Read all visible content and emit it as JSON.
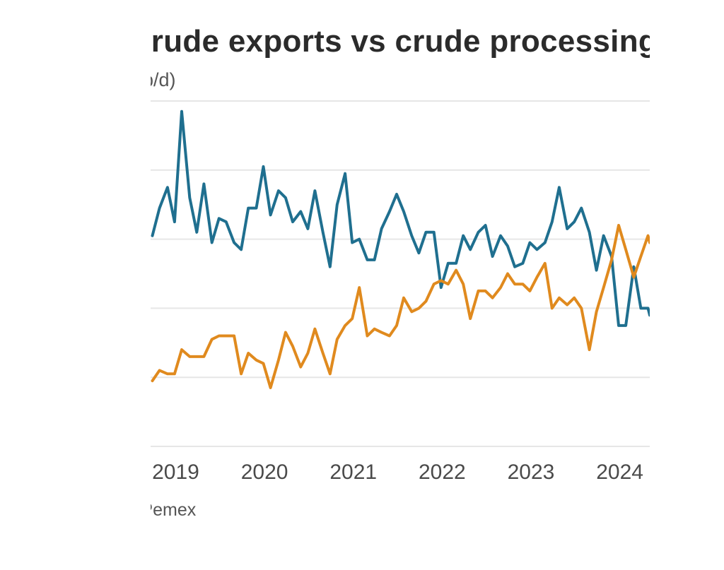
{
  "chart_data": {
    "type": "line",
    "title": "crude exports vs crude processing",
    "ylabel": "(b/d)",
    "xlabel": "",
    "source": "Platts, Pemex",
    "x_tick_labels": [
      "2019",
      "2020",
      "2021",
      "2022",
      "2023",
      "2024"
    ],
    "xlim": [
      2018.98,
      2024.6
    ],
    "ylim": [
      0,
      5
    ],
    "gridlines": [
      0,
      1,
      2,
      3,
      4,
      5
    ],
    "y_tick_labels_visible": false,
    "legend": "none",
    "series": [
      {
        "name": "Crude exports",
        "color": "#1f6f8f",
        "points": [
          [
            2019.0,
            3.05
          ],
          [
            2019.08,
            3.45
          ],
          [
            2019.17,
            3.75
          ],
          [
            2019.25,
            3.25
          ],
          [
            2019.33,
            4.85
          ],
          [
            2019.42,
            3.6
          ],
          [
            2019.5,
            3.1
          ],
          [
            2019.58,
            3.8
          ],
          [
            2019.67,
            2.95
          ],
          [
            2019.75,
            3.3
          ],
          [
            2019.83,
            3.25
          ],
          [
            2019.92,
            2.95
          ],
          [
            2020.0,
            2.85
          ],
          [
            2020.08,
            3.45
          ],
          [
            2020.17,
            3.45
          ],
          [
            2020.25,
            4.05
          ],
          [
            2020.33,
            3.35
          ],
          [
            2020.42,
            3.7
          ],
          [
            2020.5,
            3.6
          ],
          [
            2020.58,
            3.25
          ],
          [
            2020.67,
            3.4
          ],
          [
            2020.75,
            3.15
          ],
          [
            2020.83,
            3.7
          ],
          [
            2020.92,
            3.1
          ],
          [
            2021.0,
            2.6
          ],
          [
            2021.08,
            3.5
          ],
          [
            2021.17,
            3.95
          ],
          [
            2021.25,
            2.95
          ],
          [
            2021.33,
            3.0
          ],
          [
            2021.42,
            2.7
          ],
          [
            2021.5,
            2.7
          ],
          [
            2021.58,
            3.15
          ],
          [
            2021.67,
            3.4
          ],
          [
            2021.75,
            3.65
          ],
          [
            2021.83,
            3.4
          ],
          [
            2021.92,
            3.05
          ],
          [
            2022.0,
            2.8
          ],
          [
            2022.08,
            3.1
          ],
          [
            2022.17,
            3.1
          ],
          [
            2022.25,
            2.3
          ],
          [
            2022.33,
            2.65
          ],
          [
            2022.42,
            2.65
          ],
          [
            2022.5,
            3.05
          ],
          [
            2022.58,
            2.85
          ],
          [
            2022.67,
            3.1
          ],
          [
            2022.75,
            3.2
          ],
          [
            2022.83,
            2.75
          ],
          [
            2022.92,
            3.05
          ],
          [
            2023.0,
            2.9
          ],
          [
            2023.08,
            2.6
          ],
          [
            2023.17,
            2.65
          ],
          [
            2023.25,
            2.95
          ],
          [
            2023.33,
            2.85
          ],
          [
            2023.42,
            2.95
          ],
          [
            2023.5,
            3.25
          ],
          [
            2023.58,
            3.75
          ],
          [
            2023.67,
            3.15
          ],
          [
            2023.75,
            3.25
          ],
          [
            2023.83,
            3.45
          ],
          [
            2023.92,
            3.1
          ],
          [
            2024.0,
            2.55
          ],
          [
            2024.08,
            3.05
          ],
          [
            2024.17,
            2.75
          ],
          [
            2024.25,
            1.75
          ],
          [
            2024.33,
            1.75
          ],
          [
            2024.42,
            2.6
          ],
          [
            2024.5,
            2.0
          ],
          [
            2024.58,
            2.0
          ],
          [
            2024.6,
            1.9
          ]
        ]
      },
      {
        "name": "Crude processing",
        "color": "#e08a1e",
        "points": [
          [
            2019.0,
            0.95
          ],
          [
            2019.08,
            1.1
          ],
          [
            2019.17,
            1.05
          ],
          [
            2019.25,
            1.05
          ],
          [
            2019.33,
            1.4
          ],
          [
            2019.42,
            1.3
          ],
          [
            2019.5,
            1.3
          ],
          [
            2019.58,
            1.3
          ],
          [
            2019.67,
            1.55
          ],
          [
            2019.75,
            1.6
          ],
          [
            2019.83,
            1.6
          ],
          [
            2019.92,
            1.6
          ],
          [
            2020.0,
            1.05
          ],
          [
            2020.08,
            1.35
          ],
          [
            2020.17,
            1.25
          ],
          [
            2020.25,
            1.2
          ],
          [
            2020.33,
            0.85
          ],
          [
            2020.42,
            1.25
          ],
          [
            2020.5,
            1.65
          ],
          [
            2020.58,
            1.45
          ],
          [
            2020.67,
            1.15
          ],
          [
            2020.75,
            1.35
          ],
          [
            2020.83,
            1.7
          ],
          [
            2020.92,
            1.35
          ],
          [
            2021.0,
            1.05
          ],
          [
            2021.08,
            1.55
          ],
          [
            2021.17,
            1.75
          ],
          [
            2021.25,
            1.85
          ],
          [
            2021.33,
            2.3
          ],
          [
            2021.42,
            1.6
          ],
          [
            2021.5,
            1.7
          ],
          [
            2021.58,
            1.65
          ],
          [
            2021.67,
            1.6
          ],
          [
            2021.75,
            1.75
          ],
          [
            2021.83,
            2.15
          ],
          [
            2021.92,
            1.95
          ],
          [
            2022.0,
            2.0
          ],
          [
            2022.08,
            2.1
          ],
          [
            2022.17,
            2.35
          ],
          [
            2022.25,
            2.4
          ],
          [
            2022.33,
            2.35
          ],
          [
            2022.42,
            2.55
          ],
          [
            2022.5,
            2.35
          ],
          [
            2022.58,
            1.85
          ],
          [
            2022.67,
            2.25
          ],
          [
            2022.75,
            2.25
          ],
          [
            2022.83,
            2.15
          ],
          [
            2022.92,
            2.3
          ],
          [
            2023.0,
            2.5
          ],
          [
            2023.08,
            2.35
          ],
          [
            2023.17,
            2.35
          ],
          [
            2023.25,
            2.25
          ],
          [
            2023.33,
            2.45
          ],
          [
            2023.42,
            2.65
          ],
          [
            2023.5,
            2.0
          ],
          [
            2023.58,
            2.15
          ],
          [
            2023.67,
            2.05
          ],
          [
            2023.75,
            2.15
          ],
          [
            2023.83,
            2.0
          ],
          [
            2023.92,
            1.4
          ],
          [
            2024.0,
            1.95
          ],
          [
            2024.08,
            2.3
          ],
          [
            2024.17,
            2.7
          ],
          [
            2024.25,
            3.2
          ],
          [
            2024.33,
            2.85
          ],
          [
            2024.42,
            2.45
          ],
          [
            2024.5,
            2.75
          ],
          [
            2024.58,
            3.05
          ],
          [
            2024.6,
            2.95
          ]
        ]
      }
    ]
  }
}
